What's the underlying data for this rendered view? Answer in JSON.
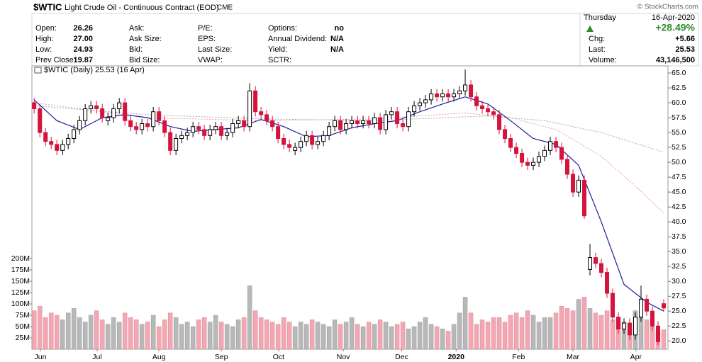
{
  "header": {
    "symbol": "$WTIC",
    "name": "Light Crude Oil - Continuous Contract (EOD)",
    "exchange": "CME",
    "brand": "© StockCharts.com",
    "columns": [
      [
        {
          "label": "Open:",
          "value": "26.26"
        },
        {
          "label": "High:",
          "value": "27.00"
        },
        {
          "label": "Low:",
          "value": "24.93"
        },
        {
          "label": "Prev Close:",
          "value": "19.87"
        }
      ],
      [
        {
          "label": "Ask:"
        },
        {
          "label": "Ask Size:"
        },
        {
          "label": "Bid:"
        },
        {
          "label": "Bid Size:"
        }
      ],
      [
        {
          "label": "P/E:"
        },
        {
          "label": "EPS:"
        },
        {
          "label": "Last Size:"
        },
        {
          "label": "VWAP:"
        }
      ],
      [
        {
          "label": "Options:",
          "value": "no"
        },
        {
          "label": "Annual Dividend:",
          "value": "N/A"
        },
        {
          "label": "Yield:",
          "value": "N/A"
        },
        {
          "label": "SCTR:"
        }
      ]
    ],
    "day": "Thursday",
    "date": "16-Apr-2020",
    "pct_change": "+28.49%",
    "stats": [
      {
        "label": "Chg:",
        "value": "+5.66"
      },
      {
        "label": "Last:",
        "value": "25.53"
      },
      {
        "label": "Volume:",
        "value": "43,146,500"
      }
    ]
  },
  "chart_data": {
    "type": "candlestick",
    "legend": "$WTIC (Daily) 25.53 (16 Apr)",
    "up_color": "#000000",
    "down_color": "#d4143c",
    "volume_up_color": "#b8b8b8",
    "volume_down_color": "#f2a7b3",
    "xlim": [
      -0.4,
      111.75
    ],
    "xticks": [
      {
        "value": 1.1,
        "label": "Jun"
      },
      {
        "value": 11.1,
        "label": "Jul"
      },
      {
        "value": 22,
        "label": "Aug"
      },
      {
        "value": 33,
        "label": "Sep"
      },
      {
        "value": 43.1,
        "label": "Oct"
      },
      {
        "value": 54.5,
        "label": "Nov"
      },
      {
        "value": 64.8,
        "label": "Dec"
      },
      {
        "value": 74.4,
        "label": "2020"
      },
      {
        "value": 85.4,
        "label": "Feb"
      },
      {
        "value": 95,
        "label": "Mar"
      },
      {
        "value": 106.1,
        "label": "Apr"
      }
    ],
    "ylim": [
      18.6,
      66.2
    ],
    "yticks": [
      {
        "value": 20,
        "label": "20.0"
      },
      22.5,
      {
        "value": 25,
        "label": "25.0"
      },
      27.5,
      {
        "value": 30,
        "label": "30.0"
      },
      32.5,
      {
        "value": 35,
        "label": "35.0"
      },
      37.5,
      {
        "value": 40,
        "label": "40.0"
      },
      42.5,
      {
        "value": 45,
        "label": "45.0"
      },
      47.5,
      {
        "value": 50,
        "label": "50.0"
      },
      52.5,
      {
        "value": 55,
        "label": "55.0"
      },
      57.5,
      {
        "value": 60,
        "label": "60.0"
      },
      62.5,
      {
        "value": 65,
        "label": "65.0"
      }
    ],
    "y2lim": [
      0,
      625000000
    ],
    "y2ticks": [
      {
        "value": 25000000,
        "label": "25M"
      },
      {
        "value": 50000000,
        "label": "50M"
      },
      {
        "value": 75000000,
        "label": "75M"
      },
      {
        "value": 100000000,
        "label": "100M"
      },
      {
        "value": 125000000,
        "label": "125M"
      },
      {
        "value": 150000000,
        "label": "150M"
      },
      {
        "value": 175000000,
        "label": "175M"
      },
      {
        "value": 200000000,
        "label": "200M"
      }
    ],
    "open": [
      60,
      59,
      55,
      53.5,
      53,
      52,
      53,
      54,
      55.5,
      57,
      59,
      59.5,
      59,
      57,
      57.5,
      59,
      60,
      57,
      56,
      55.5,
      56.5,
      56,
      58.5,
      57,
      55,
      52,
      54,
      54.5,
      55,
      56,
      55.5,
      54.5,
      55.5,
      56,
      54.5,
      55,
      56.5,
      57,
      56,
      62,
      58.5,
      58,
      57,
      56,
      54,
      53,
      52,
      52.5,
      53.5,
      54.5,
      53,
      53.5,
      54.5,
      56,
      57,
      55.5,
      56.5,
      57,
      56.5,
      57,
      56.5,
      57.5,
      55.5,
      58,
      58.5,
      56.5,
      56,
      58.5,
      59.5,
      60,
      60.5,
      61.5,
      61,
      61.5,
      61,
      61.5,
      62,
      63,
      61,
      59.5,
      59,
      58.5,
      58,
      55.5,
      54,
      52.5,
      51.5,
      50,
      49.5,
      50,
      51,
      52,
      53.5,
      52.5,
      50.5,
      48,
      45,
      47,
      32,
      34,
      33,
      31.5,
      28,
      24,
      22,
      23,
      21,
      24,
      27,
      25,
      22.5,
      26.26
    ],
    "high": [
      60.8,
      59.8,
      55.8,
      54.3,
      53.8,
      53.8,
      54.8,
      56.3,
      57.8,
      59.8,
      60.3,
      60.3,
      59.8,
      58.3,
      59.8,
      60.8,
      60.8,
      57.8,
      56.8,
      57.3,
      57.3,
      59.3,
      59.3,
      57.8,
      55.8,
      54.8,
      55.3,
      55.8,
      56.8,
      56.8,
      56.3,
      56.3,
      56.8,
      56.8,
      55.8,
      57.3,
      57.8,
      57.8,
      63.3,
      62.8,
      59.3,
      58.8,
      57.8,
      56.8,
      54.8,
      53.8,
      53.3,
      54.3,
      55.3,
      55.3,
      54.3,
      55.3,
      56.8,
      57.8,
      57.8,
      57.3,
      57.8,
      57.8,
      57.8,
      57.8,
      58.3,
      58.3,
      58.8,
      59.3,
      59.3,
      57.3,
      59.3,
      60.3,
      60.8,
      61.3,
      62.3,
      62.3,
      62.3,
      62.3,
      62.3,
      62.8,
      65.6,
      63.8,
      61.8,
      60.3,
      59.8,
      59.3,
      58.8,
      56.3,
      54.8,
      53.3,
      52.3,
      50.8,
      50.8,
      51.8,
      52.8,
      54.3,
      54.3,
      53.3,
      51.3,
      48.8,
      47.8,
      47.8,
      36.3,
      34.8,
      33.8,
      32.3,
      28.8,
      24.8,
      23.8,
      23.8,
      24.8,
      29.3,
      27.8,
      25.8,
      23.3,
      27
    ],
    "low": [
      58.2,
      54.2,
      52.7,
      52.2,
      51.2,
      51.2,
      52.2,
      53.2,
      54.7,
      56.2,
      58.2,
      58.2,
      56.7,
      56.2,
      56.7,
      58.2,
      56.2,
      55.2,
      54.7,
      54.7,
      55.2,
      55.2,
      56.2,
      54.2,
      51.2,
      51.2,
      53.2,
      53.7,
      54.2,
      54.7,
      53.7,
      53.7,
      54.7,
      53.7,
      53.7,
      54.2,
      55.7,
      55.2,
      55.2,
      57.7,
      57.2,
      56.2,
      55.2,
      53.2,
      52.2,
      51.7,
      51.2,
      51.7,
      52.7,
      52.2,
      52.2,
      52.7,
      53.7,
      55.2,
      54.7,
      54.7,
      55.7,
      55.7,
      55.7,
      55.7,
      55.7,
      54.7,
      54.7,
      57.2,
      55.7,
      55.2,
      55.2,
      57.7,
      58.7,
      59.2,
      59.7,
      60.2,
      60.2,
      60.2,
      60.2,
      60.7,
      61.2,
      60.2,
      58.7,
      58.2,
      57.7,
      57.2,
      54.7,
      53.2,
      51.7,
      50.7,
      49.2,
      48.7,
      48.7,
      49.2,
      50.2,
      51.2,
      51.7,
      49.7,
      47.2,
      44.2,
      44.2,
      40.5,
      31,
      32.2,
      30.7,
      27.2,
      23.2,
      21.2,
      21.2,
      20.2,
      20.2,
      23.2,
      24.2,
      21.7,
      19.3,
      24.93
    ],
    "close": [
      59,
      55,
      53.5,
      53,
      52,
      53,
      54,
      55.5,
      57,
      59,
      59.5,
      59,
      57.5,
      57.5,
      59,
      60,
      57,
      56,
      55.5,
      56.5,
      56,
      58.5,
      57,
      55,
      52,
      54,
      54.5,
      55,
      56,
      55.5,
      54.5,
      55.5,
      56,
      54.5,
      55,
      56.5,
      57,
      56,
      62,
      58.5,
      58,
      57,
      56,
      54,
      53,
      52.5,
      52.5,
      53.5,
      54.5,
      53,
      53.5,
      54.5,
      56,
      57,
      55.5,
      56.5,
      57,
      56.5,
      57,
      56.5,
      57.5,
      55.5,
      58,
      58.5,
      56.5,
      56,
      58.5,
      59.5,
      60,
      60.5,
      61.5,
      61,
      61.5,
      61,
      61.5,
      62,
      63,
      61,
      59.5,
      59,
      58.5,
      58,
      55.5,
      54,
      52.5,
      51.5,
      50,
      49.5,
      50,
      51,
      52,
      53.5,
      52.5,
      50.5,
      48,
      45,
      47,
      41,
      34,
      33,
      31.5,
      28,
      24,
      22,
      23,
      21,
      24,
      27,
      25,
      22.5,
      19.87,
      25.53
    ],
    "volume": [
      85000000,
      95000000,
      70000000,
      80000000,
      75000000,
      65000000,
      80000000,
      90000000,
      70000000,
      60000000,
      75000000,
      85000000,
      65000000,
      55000000,
      70000000,
      60000000,
      80000000,
      70000000,
      65000000,
      55000000,
      60000000,
      75000000,
      50000000,
      65000000,
      80000000,
      70000000,
      55000000,
      60000000,
      50000000,
      65000000,
      70000000,
      60000000,
      75000000,
      60000000,
      55000000,
      50000000,
      65000000,
      70000000,
      140000000,
      85000000,
      70000000,
      65000000,
      60000000,
      55000000,
      70000000,
      60000000,
      50000000,
      60000000,
      55000000,
      65000000,
      60000000,
      55000000,
      50000000,
      65000000,
      55000000,
      60000000,
      70000000,
      55000000,
      50000000,
      60000000,
      55000000,
      65000000,
      60000000,
      50000000,
      55000000,
      60000000,
      45000000,
      50000000,
      60000000,
      70000000,
      55000000,
      50000000,
      45000000,
      40000000,
      55000000,
      80000000,
      115000000,
      80000000,
      55000000,
      65000000,
      60000000,
      70000000,
      70000000,
      60000000,
      75000000,
      80000000,
      70000000,
      85000000,
      75000000,
      60000000,
      70000000,
      70000000,
      80000000,
      95000000,
      90000000,
      85000000,
      110000000,
      115000000,
      90000000,
      80000000,
      75000000,
      85000000,
      65000000,
      70000000,
      60000000,
      45000000,
      85000000,
      70000000,
      65000000,
      50000000,
      40000000,
      43146500
    ],
    "overlays": [
      {
        "color": "#a8a8a8",
        "style": "dotted",
        "x": [
          0,
          20,
          40,
          60,
          80,
          90,
          100,
          111
        ],
        "values": [
          59.5,
          58,
          57.3,
          57,
          57.8,
          57,
          55,
          51.7
        ]
      },
      {
        "color": "#e59aa6",
        "style": "dotted",
        "x": [
          0,
          20,
          40,
          60,
          76,
          84,
          92,
          100,
          106,
          111
        ],
        "values": [
          60,
          57.5,
          57,
          57.3,
          58.3,
          57.5,
          55.5,
          51,
          46,
          41.5
        ]
      },
      {
        "color": "#1c1c9c",
        "style": "solid",
        "x": [
          0,
          4,
          8,
          12,
          16,
          20,
          24,
          28,
          32,
          36,
          40,
          44,
          48,
          52,
          56,
          60,
          64,
          68,
          72,
          76,
          80,
          84,
          88,
          92,
          96,
          100,
          104,
          108,
          111
        ],
        "values": [
          60.5,
          57,
          55.5,
          57.5,
          58,
          57.5,
          56,
          55.2,
          55.5,
          55.8,
          57.2,
          56,
          54.3,
          54.5,
          55.8,
          56.5,
          57,
          58.5,
          59.8,
          61,
          59.8,
          57,
          54,
          53,
          49.5,
          40,
          29.5,
          26.5,
          25
        ]
      }
    ]
  }
}
